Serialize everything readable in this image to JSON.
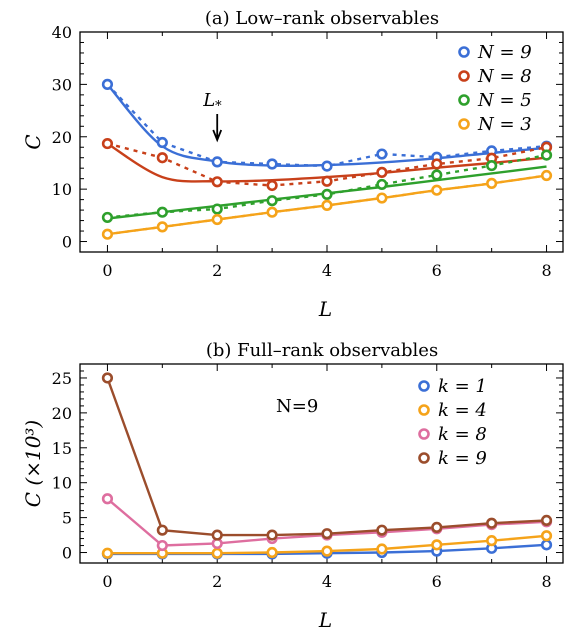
{
  "chart_data": [
    {
      "type": "line",
      "title": "(a) Low–rank observables",
      "xlabel": "L",
      "ylabel": "C",
      "xlim": [
        -0.5,
        8.3
      ],
      "ylim": [
        -2,
        40
      ],
      "xticks": [
        0,
        2,
        4,
        6,
        8
      ],
      "yticks": [
        0,
        10,
        20,
        30,
        40
      ],
      "x": [
        0,
        1,
        2,
        3,
        4,
        5,
        6,
        7,
        8
      ],
      "legend_position": "top-right",
      "annotation": {
        "text": "L",
        "sub": "*",
        "x": 2
      },
      "series": [
        {
          "name": "N = 9",
          "color": "#3b6fd6",
          "values": [
            30.0,
            18.9,
            15.2,
            14.8,
            14.4,
            16.7,
            16.1,
            17.3,
            18.2
          ],
          "fit": [
            30.0,
            18.2,
            15.3,
            14.5,
            14.6,
            15.1,
            15.9,
            16.9,
            17.9
          ]
        },
        {
          "name": "N = 8",
          "color": "#c8401a",
          "values": [
            18.7,
            16.0,
            11.4,
            10.7,
            11.5,
            13.2,
            14.8,
            15.9,
            18.0
          ],
          "fit": [
            18.7,
            12.3,
            11.5,
            11.7,
            12.3,
            13.1,
            14.1,
            15.0,
            16.0
          ]
        },
        {
          "name": "N = 5",
          "color": "#2ea02c",
          "values": [
            4.6,
            5.6,
            6.2,
            7.8,
            9.0,
            10.9,
            12.7,
            14.5,
            16.5
          ],
          "fit": [
            4.4,
            5.6,
            6.8,
            8.0,
            9.2,
            10.4,
            11.7,
            13.0,
            14.3
          ]
        },
        {
          "name": "N = 3",
          "color": "#f5a31a",
          "values": [
            1.4,
            2.8,
            4.2,
            5.6,
            6.9,
            8.3,
            9.8,
            11.1,
            12.6
          ],
          "fit": [
            1.4,
            2.8,
            4.2,
            5.6,
            6.9,
            8.3,
            9.8,
            11.1,
            12.6
          ]
        }
      ]
    },
    {
      "type": "line",
      "title": "(b) Full–rank observables",
      "xlabel": "L",
      "ylabel": "C (×10³)",
      "xlim": [
        -0.5,
        8.3
      ],
      "ylim": [
        -1.5,
        27
      ],
      "xticks": [
        0,
        2,
        4,
        6,
        8
      ],
      "yticks": [
        0,
        5,
        10,
        15,
        20,
        25
      ],
      "x": [
        0,
        1,
        2,
        3,
        4,
        5,
        6,
        7,
        8
      ],
      "legend_position": "top-right",
      "annotation": {
        "text": "N=9"
      },
      "series": [
        {
          "name": "k = 1",
          "color": "#3b6fd6",
          "values": [
            -0.2,
            -0.2,
            -0.2,
            -0.2,
            -0.1,
            0.0,
            0.2,
            0.6,
            1.1
          ]
        },
        {
          "name": "k = 4",
          "color": "#f5a31a",
          "values": [
            -0.1,
            -0.1,
            -0.1,
            0.0,
            0.2,
            0.5,
            1.1,
            1.7,
            2.4
          ]
        },
        {
          "name": "k = 8",
          "color": "#de6e9f",
          "values": [
            7.7,
            1.0,
            1.3,
            2.0,
            2.5,
            2.9,
            3.4,
            4.0,
            4.4
          ]
        },
        {
          "name": "k = 9",
          "color": "#9b4d2c",
          "values": [
            25.0,
            3.2,
            2.5,
            2.5,
            2.7,
            3.2,
            3.6,
            4.2,
            4.6
          ]
        }
      ]
    }
  ]
}
